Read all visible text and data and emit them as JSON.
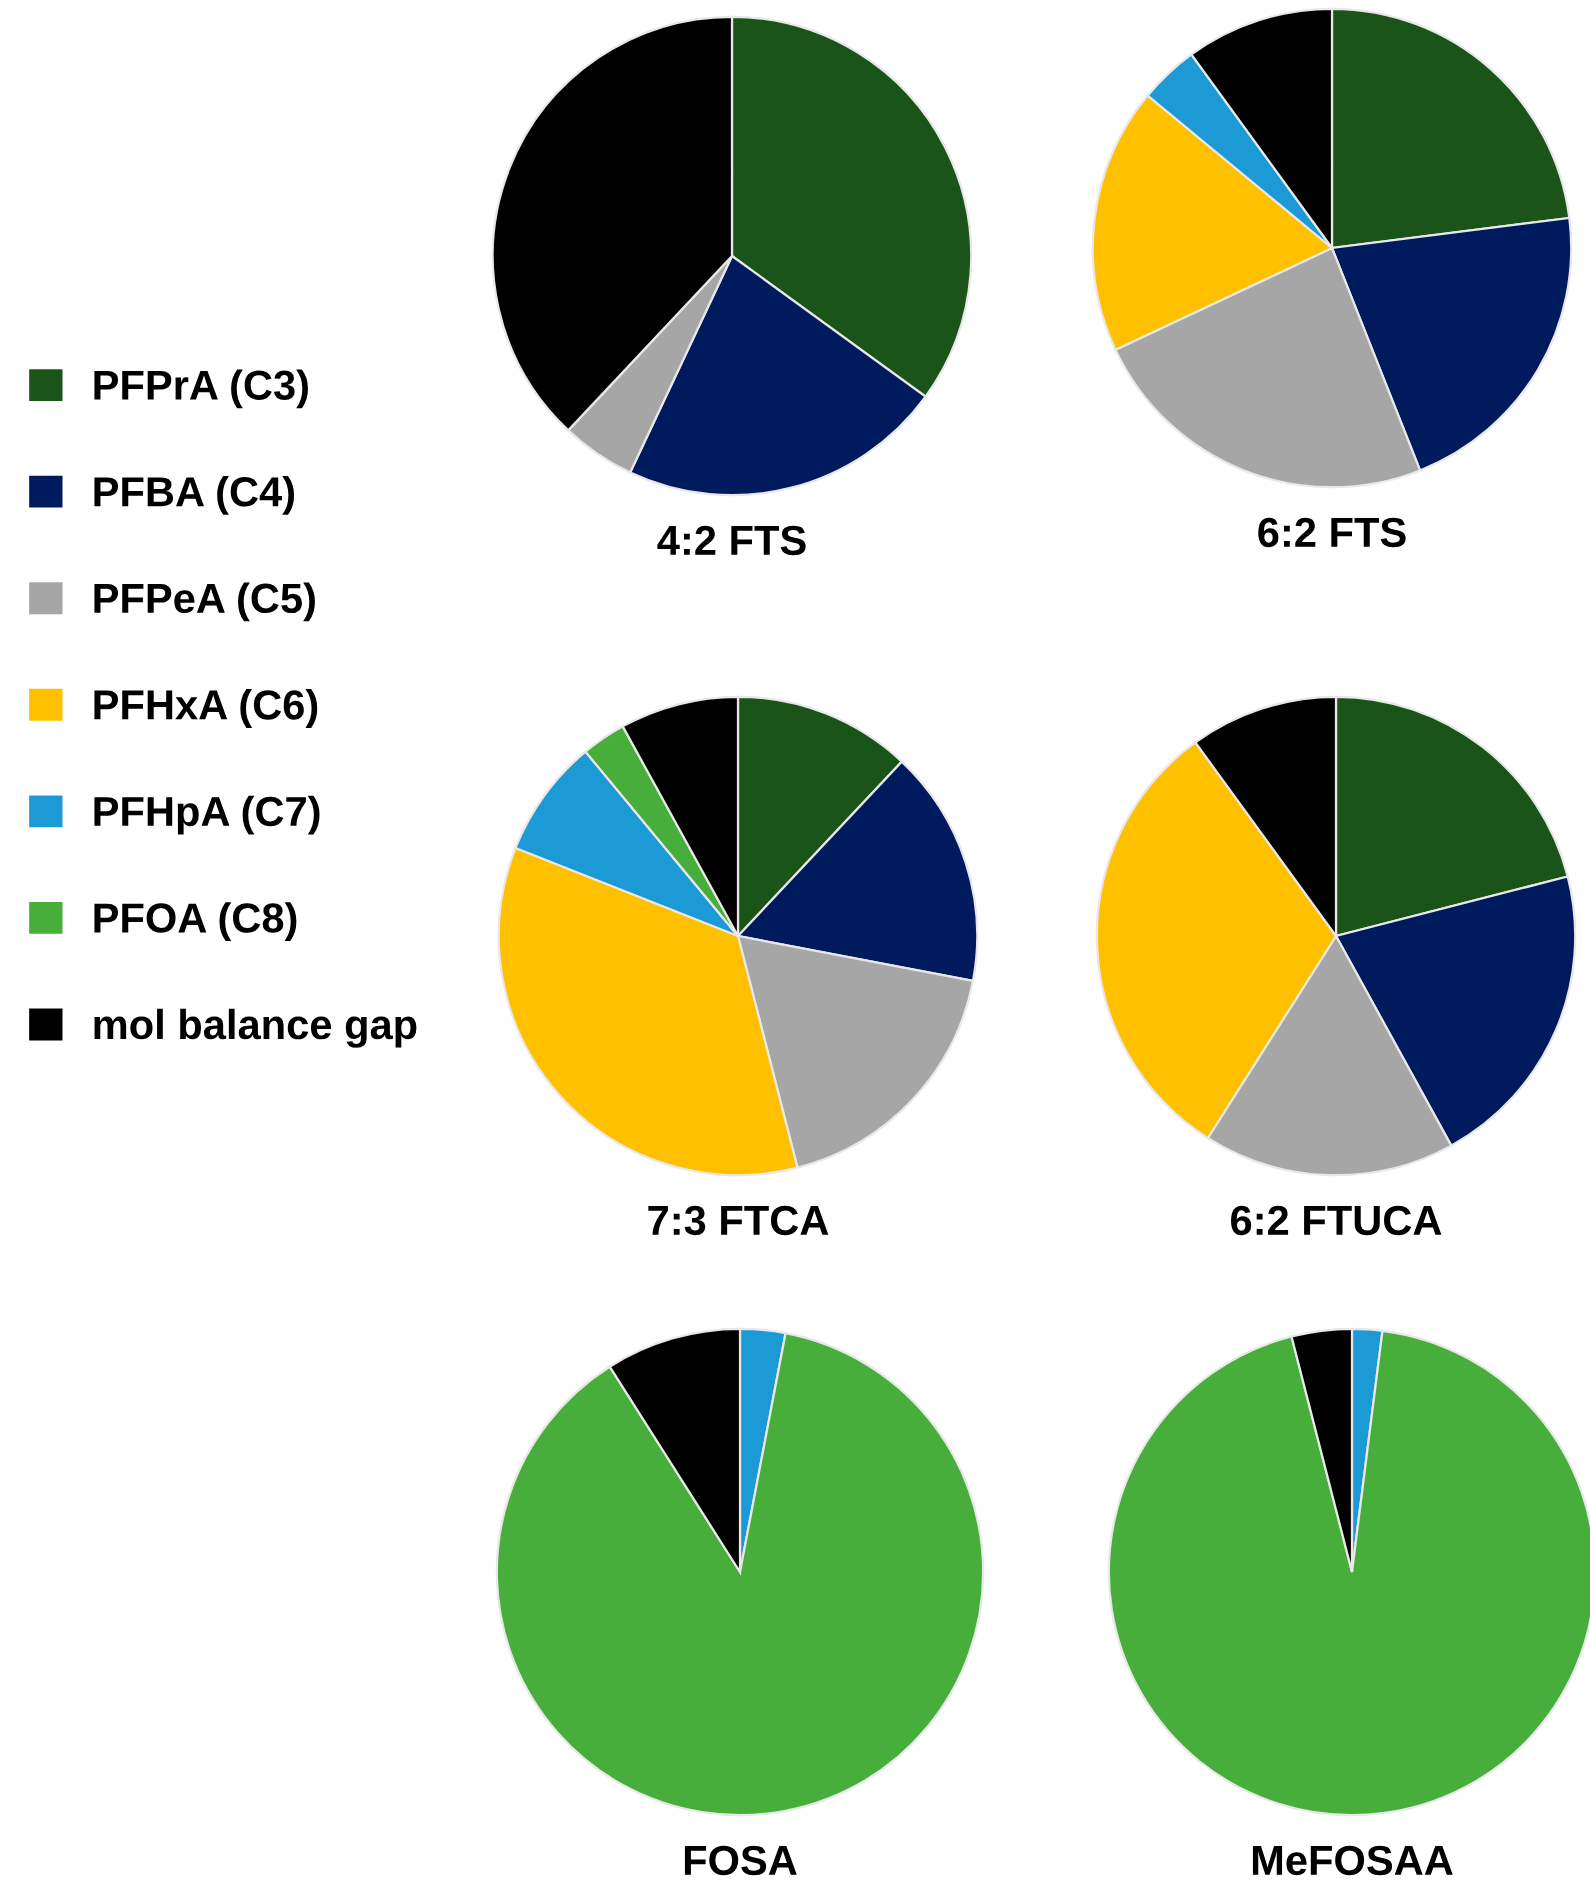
{
  "chart_data": [
    {
      "type": "pie",
      "title": "4:2 FTS",
      "legend": "left",
      "categories": [
        "PFPrA (C3)",
        "PFBA (C4)",
        "PFPeA (C5)",
        "PFHxA (C6)",
        "PFHpA (C7)",
        "PFOA (C8)",
        "mol balance gap"
      ],
      "values": [
        35,
        22,
        5,
        0,
        0,
        0,
        38
      ],
      "colors": [
        "#1b5418",
        "#001a5e",
        "#a6a6a6",
        "#ffc000",
        "#1b9ad6",
        "#47ae3b",
        "#000000"
      ]
    },
    {
      "type": "pie",
      "title": "6:2 FTS",
      "categories": [
        null,
        null,
        null,
        null,
        null,
        null,
        null
      ],
      "values": [
        23,
        21,
        24,
        18,
        4,
        0,
        10
      ],
      "colors": [
        "#1b5418",
        "#001a5e",
        "#a6a6a6",
        "#ffc000",
        "#1b9ad6",
        "#47ae3b",
        "#000000"
      ]
    },
    {
      "type": "pie",
      "title": "7:3 FTCA",
      "categories": [
        null,
        null,
        null,
        null,
        null,
        null,
        null
      ],
      "values": [
        12,
        16,
        18,
        35,
        8,
        3,
        8
      ],
      "colors": [
        "#1b5418",
        "#001a5e",
        "#a6a6a6",
        "#ffc000",
        "#1b9ad6",
        "#47ae3b",
        "#000000"
      ]
    },
    {
      "type": "pie",
      "title": "6:2 FTUCA",
      "categories": [
        null,
        null,
        null,
        null,
        null,
        null,
        null
      ],
      "values": [
        21,
        21,
        17,
        31,
        0,
        0,
        10
      ],
      "colors": [
        "#1b5418",
        "#001a5e",
        "#a6a6a6",
        "#ffc000",
        "#1b9ad6",
        "#47ae3b",
        "#000000"
      ]
    },
    {
      "type": "pie",
      "title": "FOSA",
      "categories": [
        null,
        null,
        null,
        null,
        null,
        null,
        null
      ],
      "values": [
        0,
        0,
        0,
        0,
        3,
        88,
        9
      ],
      "colors": [
        "#1b5418",
        "#001a5e",
        "#a6a6a6",
        "#ffc000",
        "#1b9ad6",
        "#47ae3b",
        "#000000"
      ]
    },
    {
      "type": "pie",
      "title": "MeFOSAA",
      "categories": [
        null,
        null,
        null,
        null,
        null,
        null,
        null
      ],
      "values": [
        0,
        0,
        0,
        0,
        2,
        94,
        4
      ],
      "colors": [
        "#1b5418",
        "#001a5e",
        "#a6a6a6",
        "#ffc000",
        "#1b9ad6",
        "#47ae3b",
        "#000000"
      ]
    }
  ]
}
